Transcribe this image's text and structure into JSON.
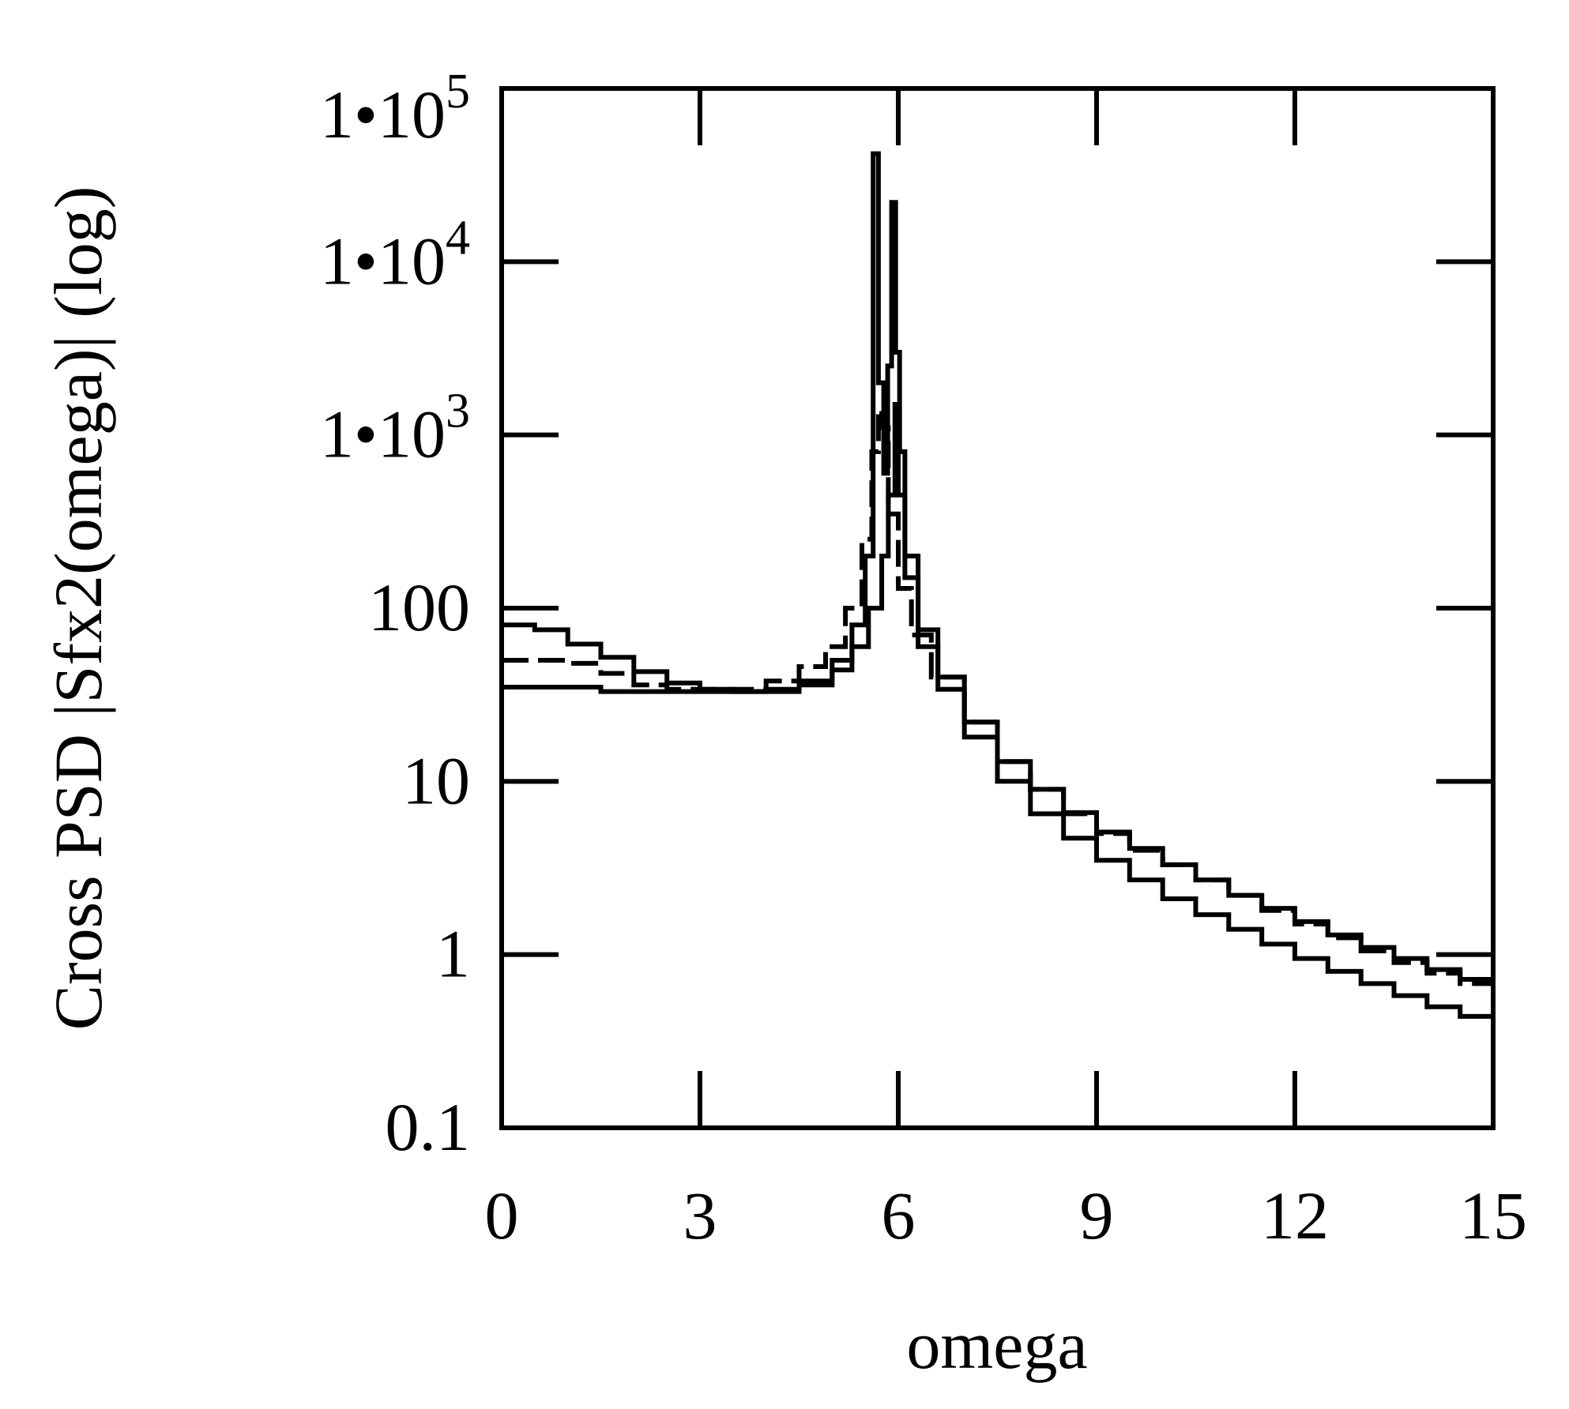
{
  "chart_data": {
    "type": "line",
    "title": "",
    "xlabel": "omega",
    "ylabel": "Cross PSD |Sfx2(omega)| (log)",
    "y_scale": "log",
    "xlim": [
      0,
      15
    ],
    "ylim": [
      0.1,
      100000
    ],
    "grid": false,
    "legend": "none",
    "x_ticks": [
      0,
      3,
      6,
      9,
      12,
      15
    ],
    "x_tick_labels": [
      "0",
      "3",
      "6",
      "9",
      "12",
      "15"
    ],
    "y_ticks": [
      0.1,
      1,
      10,
      100,
      1000,
      10000,
      100000
    ],
    "y_tick_labels": [
      {
        "base": "0.1",
        "exp": ""
      },
      {
        "base": "1",
        "exp": ""
      },
      {
        "base": "10",
        "exp": ""
      },
      {
        "base": "100",
        "exp": ""
      },
      {
        "base": "1•10",
        "exp": "3"
      },
      {
        "base": "1•10",
        "exp": "4"
      },
      {
        "base": "1•10",
        "exp": "5"
      }
    ],
    "series": [
      {
        "name": "series-1-solid",
        "style": "solid",
        "x": [
          0,
          0.5,
          1.0,
          1.5,
          2.0,
          2.5,
          3.0,
          3.5,
          4.0,
          4.5,
          5.0,
          5.3,
          5.55,
          5.75,
          5.85,
          5.95,
          6.0,
          6.1,
          6.3,
          6.6,
          7.0,
          7.5,
          8.0,
          8.5,
          9.0,
          9.5,
          10.0,
          10.5,
          11.0,
          11.5,
          12.0,
          12.5,
          13.0,
          13.5,
          14.0,
          14.5,
          15.0
        ],
        "y": [
          80,
          75,
          62,
          52,
          43,
          37,
          34,
          33,
          33,
          36,
          44,
          60,
          100,
          200,
          450,
          1500,
          450,
          150,
          60,
          34,
          18,
          10,
          6.5,
          4.7,
          3.5,
          2.7,
          2.1,
          1.7,
          1.4,
          1.15,
          0.95,
          0.8,
          0.68,
          0.58,
          0.5,
          0.44,
          0.4
        ]
      },
      {
        "name": "series-2-dashed",
        "style": "dashed",
        "x": [
          0,
          0.5,
          1.0,
          1.5,
          2.0,
          2.5,
          3.0,
          3.5,
          4.0,
          4.5,
          4.9,
          5.2,
          5.45,
          5.6,
          5.7,
          5.75,
          5.85,
          6.0,
          6.2,
          6.5,
          7.0,
          7.5,
          8.0,
          8.5,
          9.0,
          9.5,
          10.0,
          10.5,
          11.0,
          11.5,
          12.0,
          12.5,
          13.0,
          13.5,
          14.0,
          14.5,
          15.0
        ],
        "y": [
          50,
          50,
          48,
          42,
          36,
          34,
          34,
          34,
          38,
          46,
          60,
          100,
          250,
          800,
          1400,
          1100,
          350,
          130,
          70,
          40,
          22,
          13,
          9,
          6.5,
          5,
          4,
          3.3,
          2.7,
          2.2,
          1.8,
          1.5,
          1.25,
          1.05,
          0.9,
          0.78,
          0.68,
          0.56
        ]
      },
      {
        "name": "series-3-solid",
        "style": "solid",
        "x": [
          0,
          0.5,
          1.0,
          1.5,
          2.0,
          2.5,
          3.0,
          3.5,
          4.0,
          4.5,
          5.0,
          5.3,
          5.5,
          5.62,
          5.7,
          5.78,
          5.84,
          5.9,
          5.96,
          6.02,
          6.1,
          6.3,
          6.6,
          7.0,
          7.5,
          8.0,
          8.5,
          9.0,
          9.5,
          10.0,
          10.5,
          11.0,
          11.5,
          12.0,
          12.5,
          13.0,
          13.5,
          14.0,
          14.5,
          15.0
        ],
        "y": [
          35,
          35,
          35,
          33,
          33,
          33,
          33,
          33,
          34,
          38,
          50,
          80,
          200,
          42000,
          2000,
          600,
          2500,
          22000,
          3000,
          800,
          200,
          75,
          40,
          22,
          13,
          9,
          6.6,
          5.1,
          4.1,
          3.3,
          2.7,
          2.2,
          1.85,
          1.55,
          1.3,
          1.1,
          0.95,
          0.82,
          0.72,
          0.58
        ]
      }
    ]
  }
}
